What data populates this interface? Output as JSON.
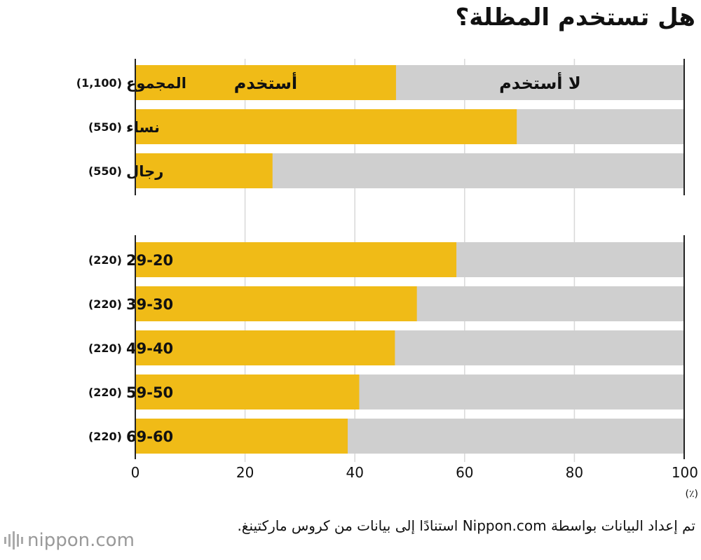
{
  "chart_data": {
    "type": "bar",
    "orientation": "horizontal",
    "stacked": true,
    "title": "هل تستخدم المظلة؟",
    "segment_labels": {
      "use": "أستخدم",
      "no_use": "لا أستخدم"
    },
    "groups": [
      {
        "rows": [
          {
            "label": "المجموع",
            "count": "(1,100)",
            "use": 47.5
          },
          {
            "label": "نساء",
            "count": "(550)",
            "use": 69.5
          },
          {
            "label": "رجال",
            "count": "(550)",
            "use": 25.0
          }
        ]
      },
      {
        "rows": [
          {
            "label": "29-20",
            "count": "(220)",
            "use": 58.5
          },
          {
            "label": "39-30",
            "count": "(220)",
            "use": 51.3
          },
          {
            "label": "49-40",
            "count": "(220)",
            "use": 47.3
          },
          {
            "label": "59-50",
            "count": "(220)",
            "use": 40.8
          },
          {
            "label": "69-60",
            "count": "(220)",
            "use": 38.7
          }
        ]
      }
    ],
    "xlim": [
      0,
      100
    ],
    "xticks": [
      "0",
      "20",
      "40",
      "60",
      "80",
      "100"
    ],
    "unit": "(٪)",
    "grid": true,
    "colors": {
      "use": "#f0bb17",
      "no_use": "#cfcfcf",
      "grid": "#d8d8d8",
      "axis": "#222222"
    }
  },
  "source": "تم إعداد البيانات بواسطة Nippon.com استنادًا إلى بيانات من كروس ماركتينغ.",
  "logo": {
    "name": "nippon",
    "suffix": ".com",
    "icon": "nippon-logo-icon"
  }
}
